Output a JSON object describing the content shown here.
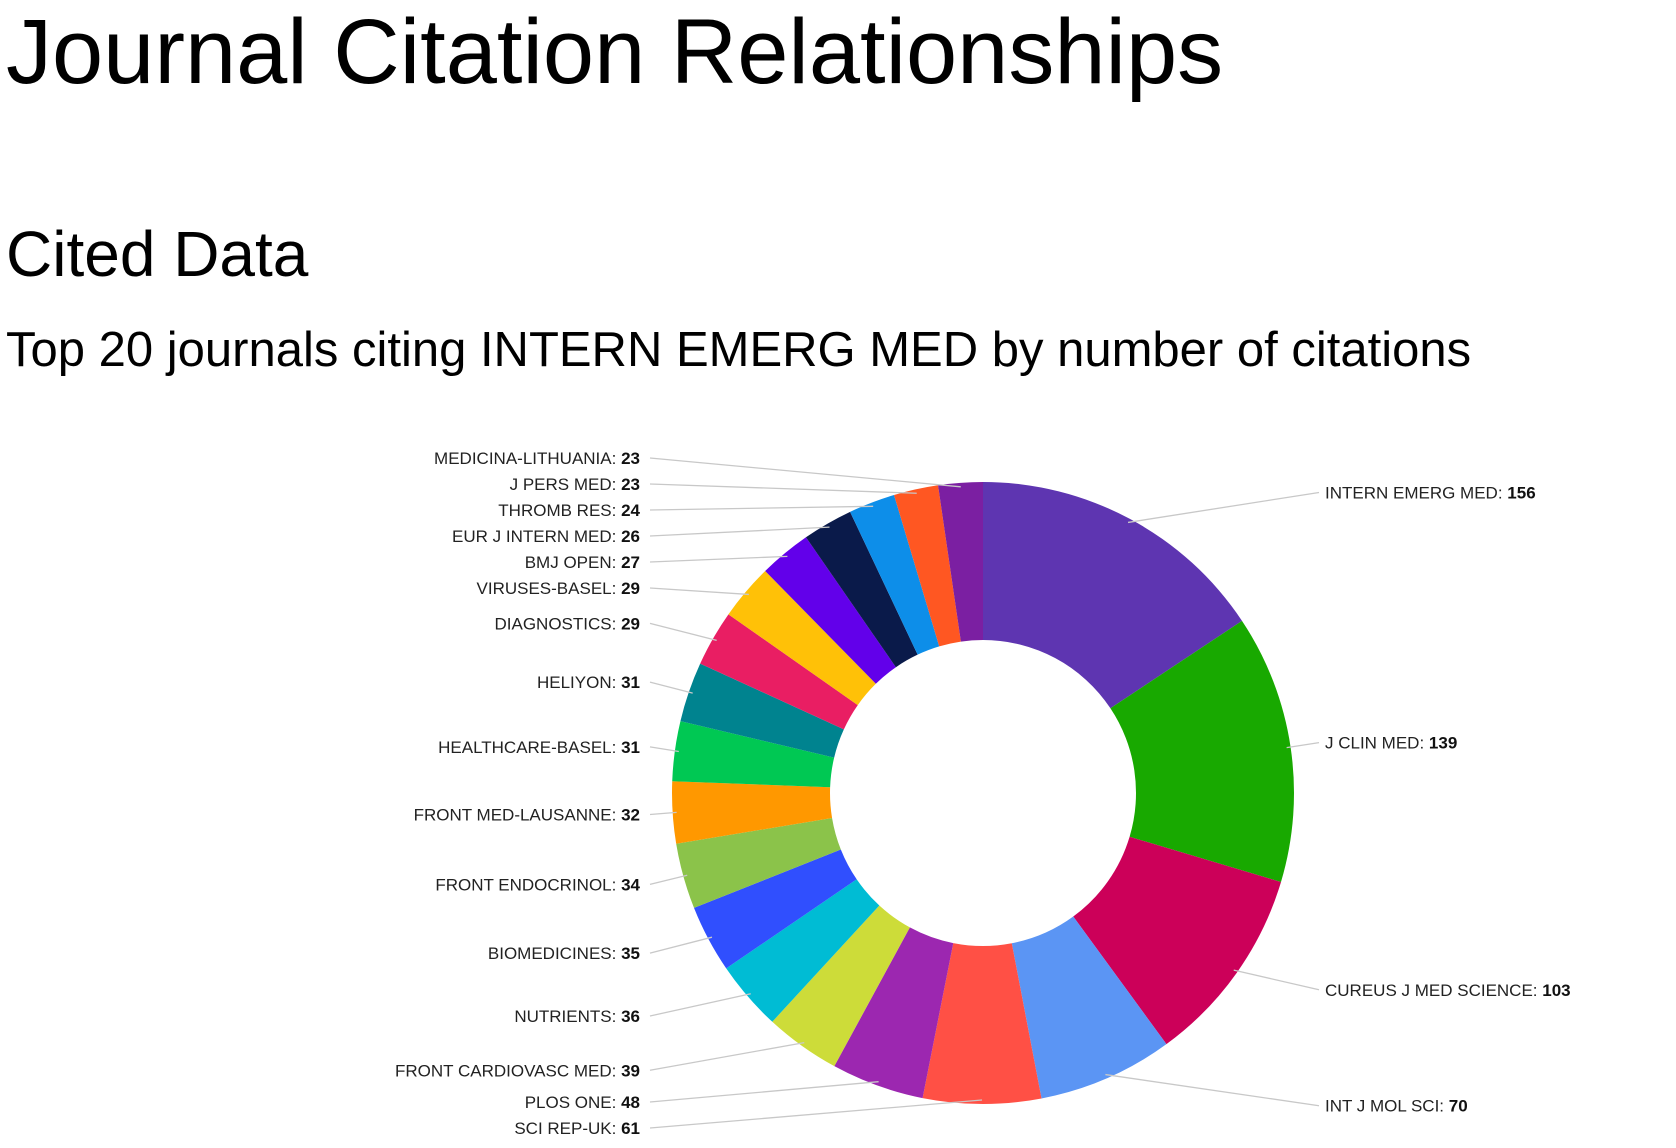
{
  "page": {
    "title": "Journal Citation Relationships",
    "section": "Cited Data",
    "chart_title": "Top 20 journals citing INTERN EMERG MED by number of citations"
  },
  "chart_data": {
    "type": "pie",
    "donut": true,
    "title": "Top 20 journals citing INTERN EMERG MED by number of citations",
    "legend": "none",
    "slices": [
      {
        "label": "INTERN EMERG MED",
        "value": 156,
        "color": "#5e35b1"
      },
      {
        "label": "J CLIN MED",
        "value": 139,
        "color": "#18a900"
      },
      {
        "label": "CUREUS J MED SCIENCE",
        "value": 103,
        "color": "#cc0059"
      },
      {
        "label": "INT J MOL SCI",
        "value": 70,
        "color": "#5b95f4"
      },
      {
        "label": "SCI REP-UK",
        "value": 61,
        "color": "#ff5045"
      },
      {
        "label": "PLOS ONE",
        "value": 48,
        "color": "#9c27b0"
      },
      {
        "label": "FRONT CARDIOVASC MED",
        "value": 39,
        "color": "#cddc39"
      },
      {
        "label": "NUTRIENTS",
        "value": 36,
        "color": "#00bcd4"
      },
      {
        "label": "BIOMEDICINES",
        "value": 35,
        "color": "#304ffe"
      },
      {
        "label": "FRONT ENDOCRINOL",
        "value": 34,
        "color": "#8bc34a"
      },
      {
        "label": "FRONT MED-LAUSANNE",
        "value": 32,
        "color": "#ff9800"
      },
      {
        "label": "HEALTHCARE-BASEL",
        "value": 31,
        "color": "#00c853"
      },
      {
        "label": "HELIYON",
        "value": 31,
        "color": "#00838f"
      },
      {
        "label": "DIAGNOSTICS",
        "value": 29,
        "color": "#e91e63"
      },
      {
        "label": "VIRUSES-BASEL",
        "value": 29,
        "color": "#ffc107"
      },
      {
        "label": "BMJ OPEN",
        "value": 27,
        "color": "#6200ea"
      },
      {
        "label": "EUR J INTERN MED",
        "value": 26,
        "color": "#0a1a4a"
      },
      {
        "label": "THROMB RES",
        "value": 24,
        "color": "#0d8ee9"
      },
      {
        "label": "J PERS MED",
        "value": 23,
        "color": "#ff5722"
      },
      {
        "label": "MEDICINA-LITHUANIA",
        "value": 23,
        "color": "#7b1fa2"
      }
    ]
  }
}
